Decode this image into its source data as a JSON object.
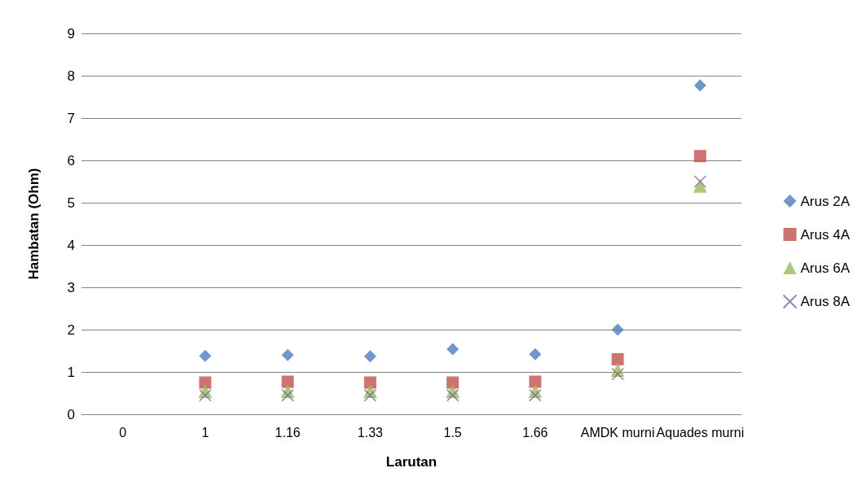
{
  "chart_data": {
    "type": "scatter",
    "xlabel": "Larutan",
    "ylabel": "Hambatan (Ohm)",
    "categories": [
      "0",
      "1",
      "1.16",
      "1.33",
      "1.5",
      "1.66",
      "AMDK murni",
      "Aquades murni"
    ],
    "series": [
      {
        "name": "Arus 2A",
        "color": "#4a7ebb",
        "marker": "diamond",
        "values": [
          null,
          1.38,
          1.4,
          1.37,
          1.54,
          1.42,
          2.0,
          7.77
        ]
      },
      {
        "name": "Arus 4A",
        "color": "#c0504d",
        "marker": "square",
        "values": [
          null,
          0.75,
          0.77,
          0.75,
          0.75,
          0.77,
          1.3,
          6.1
        ]
      },
      {
        "name": "Arus 6A",
        "color": "#9bbb59",
        "marker": "triangle",
        "values": [
          null,
          0.55,
          0.55,
          0.55,
          0.55,
          0.55,
          1.05,
          5.4
        ]
      },
      {
        "name": "Arus 8A",
        "color": "#8064a2",
        "marker": "cross",
        "values": [
          null,
          0.45,
          0.45,
          0.45,
          0.45,
          0.45,
          0.95,
          5.5
        ]
      }
    ],
    "ylim": [
      0,
      9
    ],
    "yticks": [
      0,
      1,
      2,
      3,
      4,
      5,
      6,
      7,
      8,
      9
    ],
    "grid": "y",
    "legend": "right"
  }
}
